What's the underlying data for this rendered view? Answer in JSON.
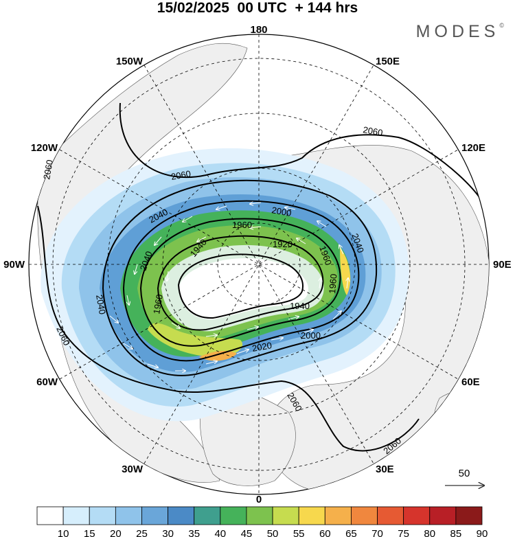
{
  "title": "15/02/2025  00 UTC  + 144 hrs",
  "brand": "MODES",
  "brand_mark": "©",
  "meridian_labels": {
    "top": "180",
    "bottom": "0",
    "left": "90W",
    "right": "90E",
    "nw1": "150W",
    "nw2": "120W",
    "ne1": "150E",
    "ne2": "120E",
    "sw1": "60W",
    "sw2": "30W",
    "se1": "60E",
    "se2": "30E"
  },
  "contour_labels": [
    "2060",
    "2060",
    "2060",
    "2060",
    "2060",
    "2060",
    "2040",
    "2040",
    "2040",
    "2040",
    "2000",
    "2000",
    "1960",
    "1960",
    "1960",
    "1960",
    "1940",
    "1940",
    "1920",
    "2020",
    "1940"
  ],
  "vector_reference": {
    "label": "50"
  },
  "colorbar": {
    "ticks": [
      "10",
      "15",
      "20",
      "25",
      "30",
      "35",
      "40",
      "45",
      "50",
      "55",
      "60",
      "65",
      "70",
      "75",
      "80",
      "85",
      "90"
    ],
    "colors": [
      "#ffffff",
      "#d6eefc",
      "#b4dcf5",
      "#8fc3ea",
      "#6aa6d9",
      "#4b8ac6",
      "#3f9f8e",
      "#45b25a",
      "#7dc24e",
      "#c6dc4f",
      "#f7d84d",
      "#f5b04b",
      "#f0873e",
      "#e65a33",
      "#d6342c",
      "#b81f26",
      "#8b1a1a"
    ]
  }
}
